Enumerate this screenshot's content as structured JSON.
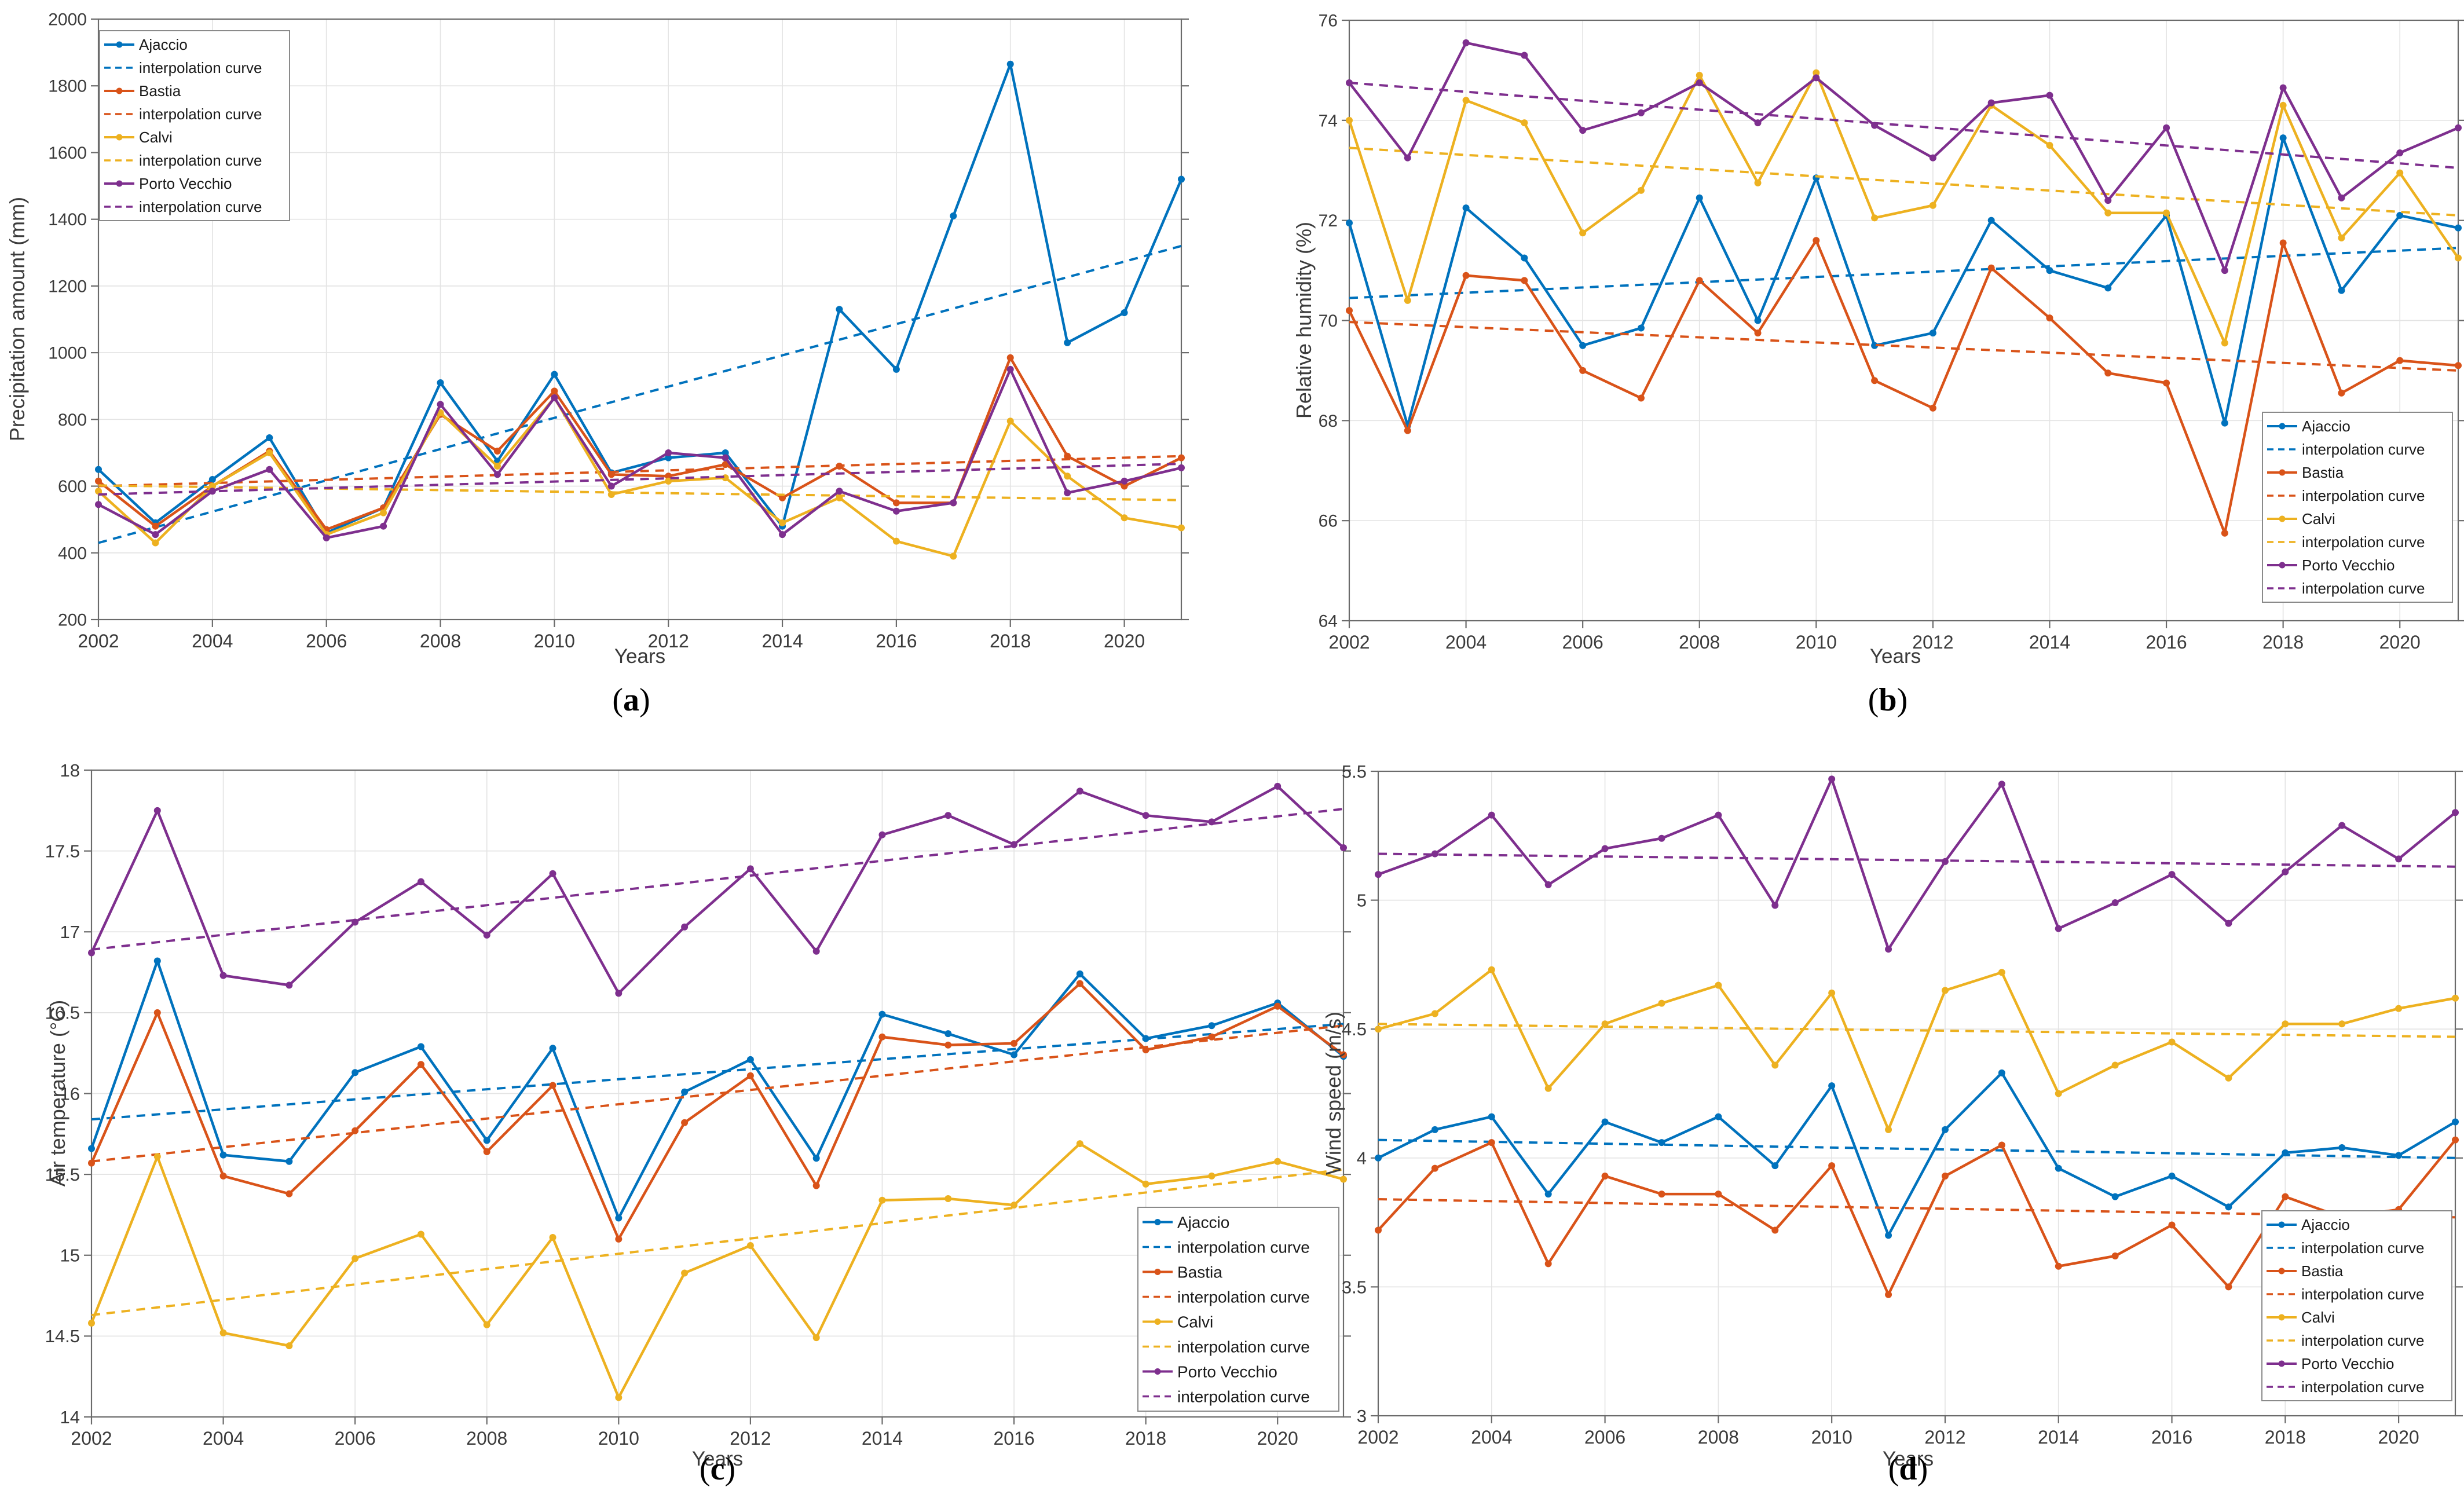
{
  "page": {
    "background": "#ffffff"
  },
  "labels": {
    "interpolation": "interpolation curve",
    "years_axis": "Years"
  },
  "palette": {
    "ajaccio": "#0072BD",
    "bastia": "#D95319",
    "calvi": "#EDB120",
    "porto_vecchio": "#7E2F8E"
  },
  "years": [
    2002,
    2003,
    2004,
    2005,
    2006,
    2007,
    2008,
    2009,
    2010,
    2011,
    2012,
    2013,
    2014,
    2015,
    2016,
    2017,
    2018,
    2019,
    2020,
    2021
  ],
  "chart_data": [
    {
      "id": "a",
      "type": "line",
      "caption_letter": "a",
      "title": "",
      "xlabel": "Years",
      "ylabel": "Precipitation amount (mm)",
      "xlim": [
        2002,
        2021
      ],
      "ylim": [
        200,
        2000
      ],
      "xticks": [
        2002,
        2004,
        2006,
        2008,
        2010,
        2012,
        2014,
        2016,
        2018,
        2020
      ],
      "yticks": [
        200,
        400,
        600,
        800,
        1000,
        1200,
        1400,
        1600,
        1800,
        2000
      ],
      "grid": true,
      "legend_position": "top-left",
      "series": [
        {
          "label": "Ajaccio",
          "color_key": "ajaccio",
          "values": [
            650,
            490,
            620,
            745,
            460,
            535,
            910,
            675,
            935,
            640,
            685,
            700,
            480,
            1130,
            950,
            1410,
            1865,
            1030,
            1120,
            1520
          ],
          "trend": [
            430,
            1320
          ]
        },
        {
          "label": "Bastia",
          "color_key": "bastia",
          "values": [
            615,
            480,
            600,
            705,
            470,
            535,
            815,
            705,
            885,
            635,
            630,
            665,
            565,
            660,
            550,
            550,
            985,
            690,
            600,
            685
          ],
          "trend": [
            600,
            690
          ]
        },
        {
          "label": "Calvi",
          "color_key": "calvi",
          "values": [
            585,
            430,
            600,
            700,
            455,
            520,
            820,
            660,
            865,
            575,
            615,
            625,
            490,
            565,
            435,
            390,
            795,
            630,
            505,
            475
          ],
          "trend": [
            602,
            558
          ]
        },
        {
          "label": "Porto Vecchio",
          "color_key": "porto_vecchio",
          "values": [
            545,
            455,
            585,
            650,
            445,
            480,
            845,
            635,
            865,
            600,
            700,
            685,
            455,
            585,
            525,
            550,
            950,
            580,
            615,
            655
          ],
          "trend": [
            575,
            667
          ]
        }
      ]
    },
    {
      "id": "b",
      "type": "line",
      "caption_letter": "b",
      "title": "",
      "xlabel": "Years",
      "ylabel": "Relative humidity (%)",
      "xlim": [
        2002,
        2021
      ],
      "ylim": [
        64,
        76
      ],
      "xticks": [
        2002,
        2004,
        2006,
        2008,
        2010,
        2012,
        2014,
        2016,
        2018,
        2020
      ],
      "yticks": [
        64,
        66,
        68,
        70,
        72,
        74,
        76
      ],
      "grid": true,
      "legend_position": "bottom-right",
      "series": [
        {
          "label": "Ajaccio",
          "color_key": "ajaccio",
          "values": [
            71.95,
            67.9,
            72.25,
            71.25,
            69.5,
            69.85,
            72.45,
            70.0,
            72.85,
            69.5,
            69.75,
            72.0,
            71.0,
            70.65,
            72.1,
            67.95,
            73.65,
            70.6,
            72.1,
            71.85
          ],
          "trend": [
            70.45,
            71.45
          ]
        },
        {
          "label": "Bastia",
          "color_key": "bastia",
          "values": [
            70.2,
            67.8,
            70.9,
            70.8,
            69.0,
            68.45,
            70.8,
            69.75,
            71.6,
            68.8,
            68.25,
            71.05,
            70.05,
            68.95,
            68.75,
            65.75,
            71.55,
            68.55,
            69.2,
            69.1
          ],
          "trend": [
            69.97,
            69.0
          ]
        },
        {
          "label": "Calvi",
          "color_key": "calvi",
          "values": [
            74.0,
            70.4,
            74.4,
            73.95,
            71.75,
            72.6,
            74.9,
            72.75,
            74.95,
            72.05,
            72.3,
            74.3,
            73.5,
            72.15,
            72.15,
            69.55,
            74.3,
            71.65,
            72.95,
            71.25
          ],
          "trend": [
            73.45,
            72.1
          ]
        },
        {
          "label": "Porto Vecchio",
          "color_key": "porto_vecchio",
          "values": [
            74.75,
            73.25,
            75.55,
            75.3,
            73.8,
            74.15,
            74.75,
            73.95,
            74.85,
            73.9,
            73.25,
            74.35,
            74.5,
            72.4,
            73.85,
            71.0,
            74.65,
            72.45,
            73.35,
            73.85
          ],
          "trend": [
            74.75,
            73.05
          ]
        }
      ]
    },
    {
      "id": "c",
      "type": "line",
      "caption_letter": "c",
      "title": "",
      "xlabel": "Years",
      "ylabel": "Air temperature (°C)",
      "xlim": [
        2002,
        2021
      ],
      "ylim": [
        14,
        18
      ],
      "xticks": [
        2002,
        2004,
        2006,
        2008,
        2010,
        2012,
        2014,
        2016,
        2018,
        2020
      ],
      "yticks": [
        14,
        14.5,
        15,
        15.5,
        16,
        16.5,
        17,
        17.5,
        18
      ],
      "grid": true,
      "legend_position": "bottom-right",
      "series": [
        {
          "label": "Ajaccio",
          "color_key": "ajaccio",
          "values": [
            15.66,
            16.82,
            15.62,
            15.58,
            16.13,
            16.29,
            15.71,
            16.28,
            15.23,
            16.01,
            16.21,
            15.6,
            16.49,
            16.37,
            16.24,
            16.74,
            16.34,
            16.42,
            16.56,
            16.23
          ],
          "trend": [
            15.84,
            16.43
          ]
        },
        {
          "label": "Bastia",
          "color_key": "bastia",
          "values": [
            15.57,
            16.5,
            15.49,
            15.38,
            15.77,
            16.18,
            15.64,
            16.05,
            15.1,
            15.82,
            16.11,
            15.43,
            16.35,
            16.3,
            16.31,
            16.68,
            16.27,
            16.35,
            16.54,
            16.24
          ],
          "trend": [
            15.58,
            16.42
          ]
        },
        {
          "label": "Calvi",
          "color_key": "calvi",
          "values": [
            14.58,
            15.61,
            14.52,
            14.44,
            14.98,
            15.13,
            14.57,
            15.11,
            14.12,
            14.89,
            15.06,
            14.49,
            15.34,
            15.35,
            15.31,
            15.69,
            15.44,
            15.49,
            15.58,
            15.47
          ],
          "trend": [
            14.63,
            15.53
          ]
        },
        {
          "label": "Porto Vecchio",
          "color_key": "porto_vecchio",
          "values": [
            16.87,
            17.75,
            16.73,
            16.67,
            17.06,
            17.31,
            16.98,
            17.36,
            16.62,
            17.03,
            17.39,
            16.88,
            17.6,
            17.72,
            17.54,
            17.87,
            17.72,
            17.68,
            17.9,
            17.52
          ],
          "trend": [
            16.89,
            17.76
          ]
        }
      ]
    },
    {
      "id": "d",
      "type": "line",
      "caption_letter": "d",
      "title": "",
      "xlabel": "Years",
      "ylabel": "Wind speed (m/s)",
      "xlim": [
        2002,
        2021
      ],
      "ylim": [
        3,
        5.5
      ],
      "xticks": [
        2002,
        2004,
        2006,
        2008,
        2010,
        2012,
        2014,
        2016,
        2018,
        2020
      ],
      "yticks": [
        3,
        3.5,
        4,
        4.5,
        5,
        5.5
      ],
      "grid": true,
      "legend_position": "bottom-right",
      "series": [
        {
          "label": "Ajaccio",
          "color_key": "ajaccio",
          "values": [
            4.0,
            4.11,
            4.16,
            3.86,
            4.14,
            4.06,
            4.16,
            3.97,
            4.28,
            3.7,
            4.11,
            4.33,
            3.96,
            3.85,
            3.93,
            3.81,
            4.02,
            4.04,
            4.01,
            4.14
          ],
          "trend": [
            4.07,
            4.0
          ]
        },
        {
          "label": "Bastia",
          "color_key": "bastia",
          "values": [
            3.72,
            3.96,
            4.06,
            3.59,
            3.93,
            3.86,
            3.86,
            3.72,
            3.97,
            3.47,
            3.93,
            4.05,
            3.58,
            3.62,
            3.74,
            3.5,
            3.85,
            3.77,
            3.8,
            4.07
          ],
          "trend": [
            3.84,
            3.77
          ]
        },
        {
          "label": "Calvi",
          "color_key": "calvi",
          "values": [
            4.5,
            4.56,
            4.73,
            4.27,
            4.52,
            4.6,
            4.67,
            4.36,
            4.64,
            4.11,
            4.65,
            4.72,
            4.25,
            4.36,
            4.45,
            4.31,
            4.52,
            4.52,
            4.58,
            4.62
          ],
          "trend": [
            4.52,
            4.47
          ]
        },
        {
          "label": "Porto Vecchio",
          "color_key": "porto_vecchio",
          "values": [
            5.1,
            5.18,
            5.33,
            5.06,
            5.2,
            5.24,
            5.33,
            4.98,
            5.47,
            4.81,
            5.15,
            5.45,
            4.89,
            4.99,
            5.1,
            4.91,
            5.11,
            5.29,
            5.16,
            5.34
          ],
          "trend": [
            5.18,
            5.13
          ]
        }
      ]
    }
  ]
}
